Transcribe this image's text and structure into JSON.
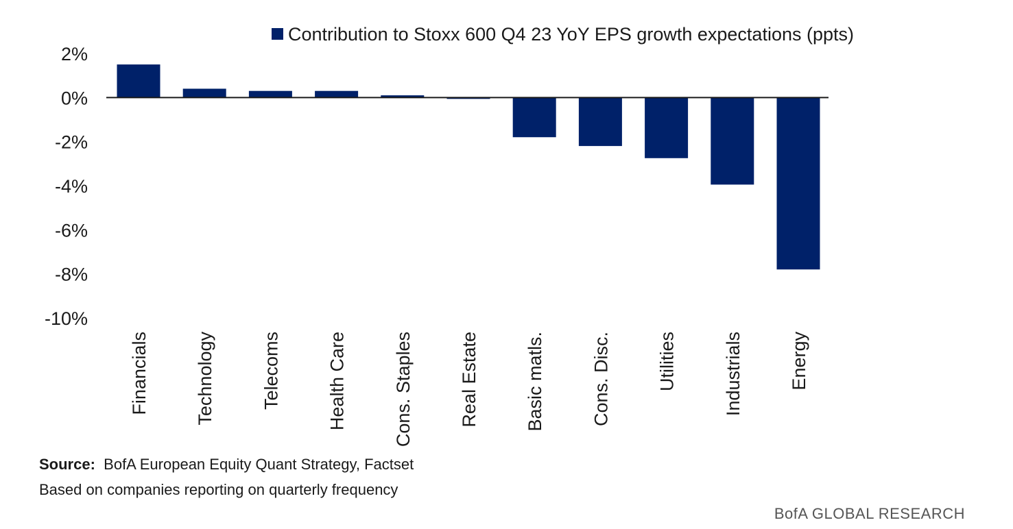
{
  "chart_data": {
    "type": "bar",
    "legend": "Contribution to Stoxx 600 Q4 23 YoY EPS growth expectations (ppts)",
    "categories": [
      "Financials",
      "Technology",
      "Telecoms",
      "Health Care",
      "Cons. Staples",
      "Real Estate",
      "Basic matls.",
      "Cons. Disc.",
      "Utilities",
      "Industrials",
      "Energy"
    ],
    "values": [
      1.5,
      0.4,
      0.3,
      0.3,
      0.1,
      -0.05,
      -1.8,
      -2.2,
      -2.75,
      -3.95,
      -7.8
    ],
    "ylim": [
      -10,
      2
    ],
    "yticks": [
      2,
      0,
      -2,
      -4,
      -6,
      -8,
      -10
    ],
    "ytick_labels": [
      "2%",
      "0%",
      "-2%",
      "-4%",
      "-6%",
      "-8%",
      "-10%"
    ],
    "bar_color": "#002169",
    "axis_color": "#1a1a1a",
    "legend_position": "top-right",
    "xlabel": "",
    "ylabel": ""
  },
  "footer": {
    "source_label": "Source:",
    "source_text": "BofA European Equity Quant Strategy, Factset",
    "note": "Based on companies  reporting on quarterly frequency"
  },
  "brand": "BofA GLOBAL RESEARCH"
}
